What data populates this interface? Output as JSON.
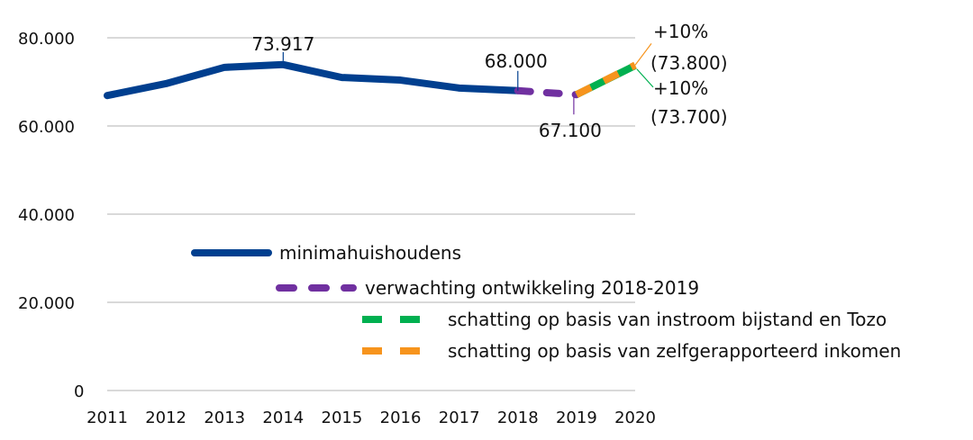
{
  "chart_data": {
    "type": "line",
    "x": [
      2011,
      2012,
      2013,
      2014,
      2015,
      2016,
      2017,
      2018,
      2019,
      2020
    ],
    "ylim": [
      0,
      80000
    ],
    "yticks": [
      0,
      20000,
      40000,
      60000,
      80000
    ],
    "ytick_labels": [
      "0",
      "20.000",
      "40.000",
      "60.000",
      "80.000"
    ],
    "xtick_labels": [
      "2011",
      "2012",
      "2013",
      "2014",
      "2015",
      "2016",
      "2017",
      "2018",
      "2019",
      "2020"
    ],
    "grid": true,
    "legend_position": "center-bottom",
    "series": [
      {
        "name": "minimahuishoudens",
        "color": "#003f8f",
        "style": "solid",
        "x": [
          2011,
          2012,
          2013,
          2014,
          2015,
          2016,
          2017,
          2018
        ],
        "values": [
          66900,
          69600,
          73300,
          73917,
          71000,
          70400,
          68600,
          68000
        ]
      },
      {
        "name": "verwachting ontwikkeling 2018-2019",
        "color": "#7030a0",
        "style": "dashed",
        "x": [
          2018,
          2019
        ],
        "values": [
          68000,
          67100
        ]
      },
      {
        "name": "schatting op basis van instroom bijstand en Tozo",
        "color": "#00b050",
        "style": "dashed",
        "x": [
          2019,
          2020
        ],
        "values": [
          67100,
          73700
        ]
      },
      {
        "name": "schatting op basis van zelfgerapporteerd inkomen",
        "color": "#f7941d",
        "style": "dashed",
        "x": [
          2019,
          2020
        ],
        "values": [
          67100,
          73800
        ]
      }
    ],
    "annotations": [
      {
        "text": "73.917",
        "x": 2014,
        "y": 73917
      },
      {
        "text": "68.000",
        "x": 2018,
        "y": 68000
      },
      {
        "text": "67.100",
        "x": 2019,
        "y": 67100
      },
      {
        "text": "+10%",
        "text2": "(73.800)",
        "x": 2020,
        "y": 73800,
        "color": "#f7941d"
      },
      {
        "text": "+10%",
        "text2": "(73.700)",
        "x": 2020,
        "y": 73700,
        "color": "#00b050"
      }
    ]
  }
}
